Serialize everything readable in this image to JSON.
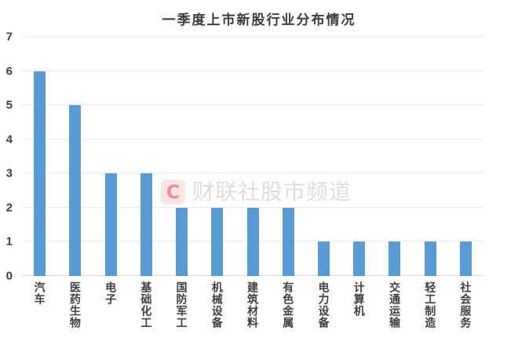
{
  "title": "一季度上市新股行业分布情况",
  "watermark": {
    "logo_letter": "C",
    "text": "财联社股市频道"
  },
  "colors": {
    "bar": "#5b9bd5",
    "gridline": "#ebebeb",
    "axis_line": "#d6d6d6",
    "title_text": "#3b3b41",
    "axis_text": "#3f4045",
    "watermark_box": "rgba(229,72,72,0.15)",
    "watermark_letter": "rgba(224,58,58,0.5)",
    "watermark_text": "#dcdcdc"
  },
  "chart_data": {
    "type": "bar",
    "title": "一季度上市新股行业分布情况",
    "categories": [
      "汽车",
      "医药生物",
      "电子",
      "基础化工",
      "国防军工",
      "机械设备",
      "建筑材料",
      "有色金属",
      "电力设备",
      "计算机",
      "交通运输",
      "轻工制造",
      "社会服务"
    ],
    "values": [
      6,
      5,
      3,
      3,
      2,
      2,
      2,
      2,
      1,
      1,
      1,
      1,
      1
    ],
    "xlabel": "",
    "ylabel": "",
    "ylim": [
      0,
      7
    ],
    "ytick_interval": 1,
    "yticks": [
      0,
      1,
      2,
      3,
      4,
      5,
      6,
      7
    ],
    "grid": true,
    "legend": false,
    "bar_color": "#5b9bd5"
  }
}
